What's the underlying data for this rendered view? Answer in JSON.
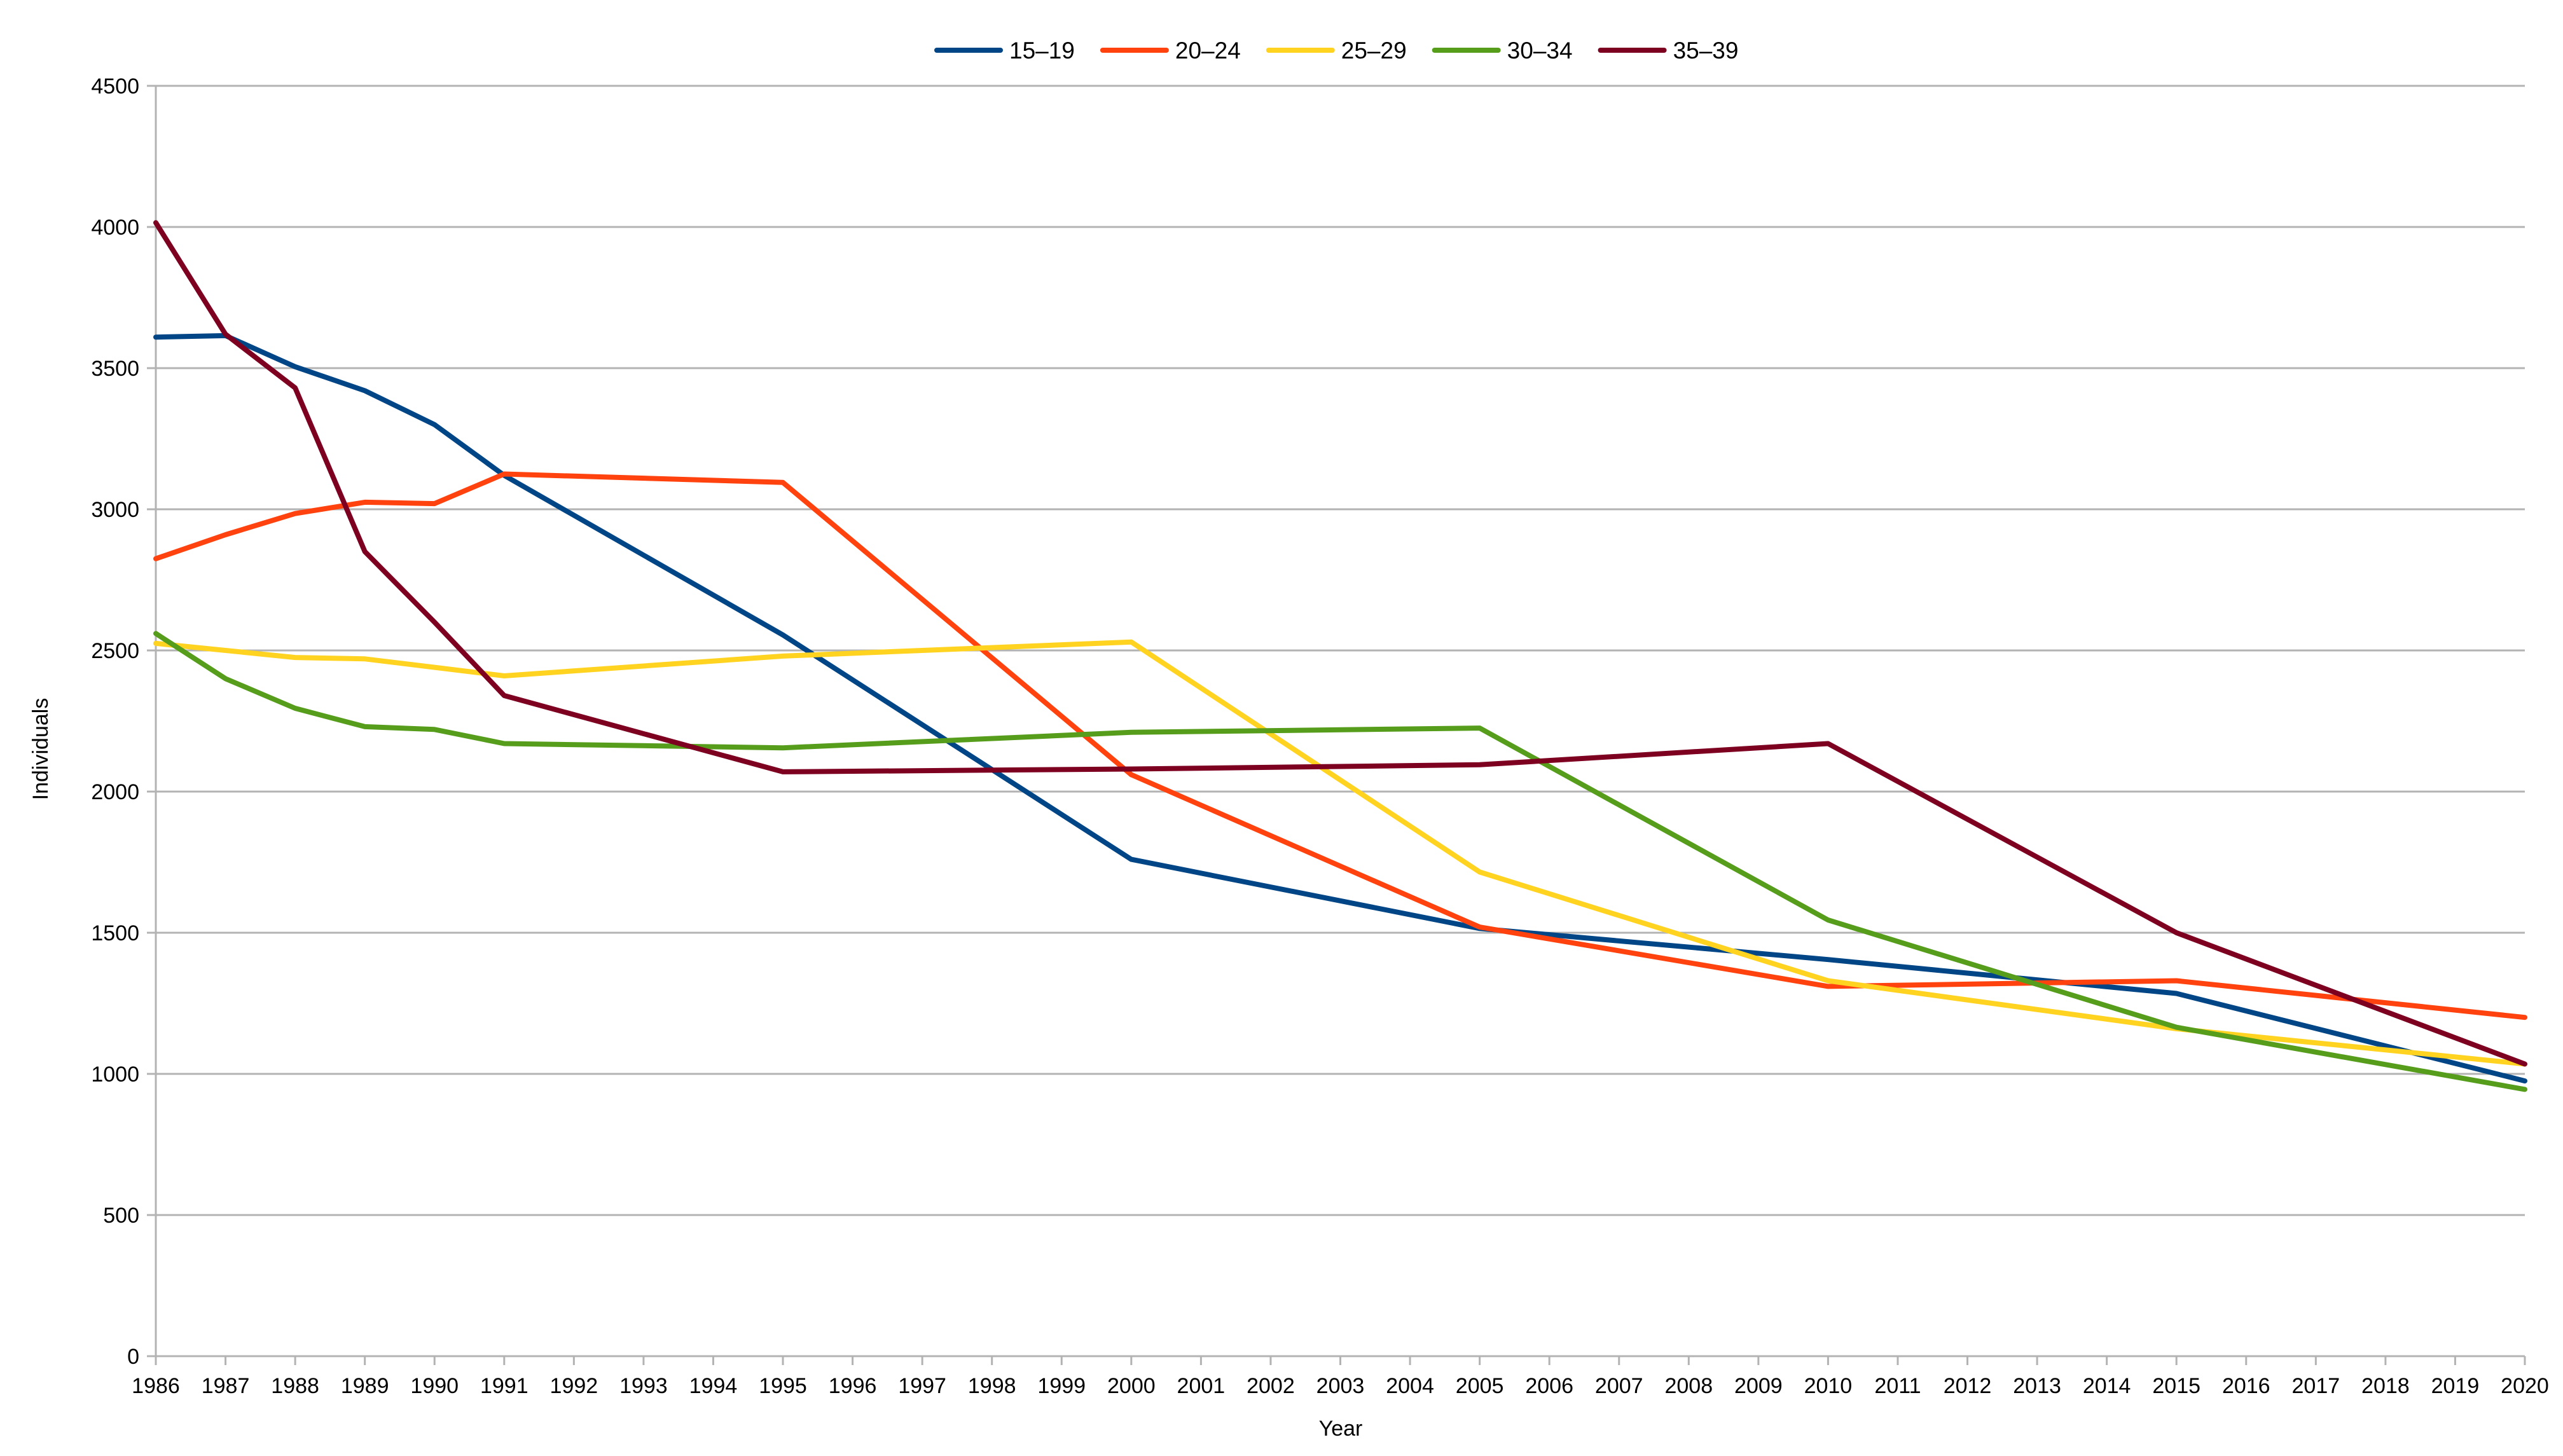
{
  "chart_data": {
    "type": "line",
    "title": "",
    "xlabel": "Year",
    "ylabel": "Individuals",
    "ylim": [
      0,
      4500
    ],
    "yticks": [
      0,
      500,
      1000,
      1500,
      2000,
      2500,
      3000,
      3500,
      4000,
      4500
    ],
    "grid": true,
    "legend_position": "top",
    "categories": [
      "1986",
      "1987",
      "1988",
      "1989",
      "1990",
      "1991",
      "1992",
      "1993",
      "1994",
      "1995",
      "1996",
      "1997",
      "1998",
      "1999",
      "2000",
      "2001",
      "2002",
      "2003",
      "2004",
      "2005",
      "2006",
      "2007",
      "2008",
      "2009",
      "2010",
      "2011",
      "2012",
      "2013",
      "2014",
      "2015",
      "2016",
      "2017",
      "2018",
      "2019",
      "2020"
    ],
    "series": [
      {
        "name": "15–19",
        "color": "#004586",
        "points": [
          [
            1986,
            3610
          ],
          [
            1987,
            3615
          ],
          [
            1988,
            3505
          ],
          [
            1989,
            3420
          ],
          [
            1990,
            3300
          ],
          [
            1991,
            3120
          ],
          [
            1995,
            2555
          ],
          [
            2000,
            1760
          ],
          [
            2005,
            1515
          ],
          [
            2010,
            1405
          ],
          [
            2015,
            1285
          ],
          [
            2020,
            975
          ]
        ]
      },
      {
        "name": "20–24",
        "color": "#ff420e",
        "points": [
          [
            1986,
            2825
          ],
          [
            1987,
            2910
          ],
          [
            1988,
            2985
          ],
          [
            1989,
            3025
          ],
          [
            1990,
            3020
          ],
          [
            1991,
            3125
          ],
          [
            1995,
            3095
          ],
          [
            2000,
            2060
          ],
          [
            2005,
            1520
          ],
          [
            2010,
            1310
          ],
          [
            2015,
            1330
          ],
          [
            2020,
            1200
          ]
        ]
      },
      {
        "name": "25–29",
        "color": "#ffd320",
        "points": [
          [
            1986,
            2525
          ],
          [
            1987,
            2500
          ],
          [
            1988,
            2475
          ],
          [
            1989,
            2470
          ],
          [
            1990,
            2440
          ],
          [
            1991,
            2410
          ],
          [
            1995,
            2480
          ],
          [
            2000,
            2530
          ],
          [
            2005,
            1715
          ],
          [
            2010,
            1330
          ],
          [
            2015,
            1160
          ],
          [
            2020,
            1035
          ]
        ]
      },
      {
        "name": "30–34",
        "color": "#579d1c",
        "points": [
          [
            1986,
            2560
          ],
          [
            1987,
            2400
          ],
          [
            1988,
            2295
          ],
          [
            1989,
            2230
          ],
          [
            1990,
            2220
          ],
          [
            1991,
            2170
          ],
          [
            1995,
            2155
          ],
          [
            2000,
            2210
          ],
          [
            2005,
            2225
          ],
          [
            2010,
            1545
          ],
          [
            2015,
            1165
          ],
          [
            2020,
            945
          ]
        ]
      },
      {
        "name": "35–39",
        "color": "#7e0021",
        "points": [
          [
            1986,
            4015
          ],
          [
            1987,
            3620
          ],
          [
            1988,
            3430
          ],
          [
            1989,
            2850
          ],
          [
            1990,
            2600
          ],
          [
            1991,
            2340
          ],
          [
            1995,
            2070
          ],
          [
            2000,
            2080
          ],
          [
            2005,
            2095
          ],
          [
            2010,
            2170
          ],
          [
            2015,
            1500
          ],
          [
            2020,
            1035
          ]
        ]
      }
    ]
  }
}
